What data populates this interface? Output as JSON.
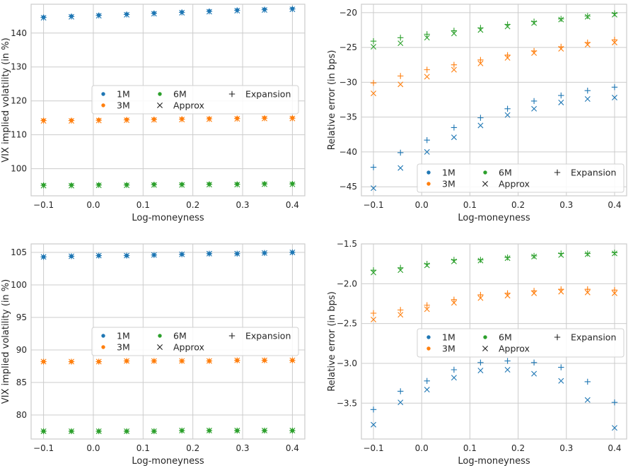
{
  "colors": {
    "1M": "#1f77b4",
    "3M": "#ff7f0e",
    "6M": "#2ca02c",
    "grid": "#cccccc",
    "frame": "#cccccc",
    "background": "#ffffff"
  },
  "chart_data": [
    {
      "type": "scatter",
      "xlabel": "Log-moneyness",
      "ylabel": "VIX implied volatility (in %)",
      "xlim": [
        -0.125,
        0.425
      ],
      "ylim": [
        92.0,
        148.5
      ],
      "xticks": [
        -0.1,
        0.0,
        0.1,
        0.2,
        0.3,
        0.4
      ],
      "xtick_labels": [
        "−0.1",
        "0.0",
        "0.1",
        "0.2",
        "0.3",
        "0.4"
      ],
      "yticks": [
        100,
        110,
        120,
        130,
        140
      ],
      "ytick_labels": [
        "100",
        "110",
        "120",
        "130",
        "140"
      ],
      "grid": true,
      "legend": {
        "placement": "center-right",
        "columns": 3,
        "entries": [
          "1M",
          "3M",
          "6M",
          "Approx",
          "Expansion"
        ]
      },
      "x": [
        -0.1,
        -0.044,
        0.011,
        0.067,
        0.122,
        0.178,
        0.233,
        0.289,
        0.344,
        0.4
      ],
      "series": [
        {
          "name": "1M",
          "marker": "dot",
          "values": [
            144.7,
            145.0,
            145.3,
            145.6,
            145.9,
            146.2,
            146.5,
            146.8,
            147.0,
            147.2
          ]
        },
        {
          "name": "3M",
          "marker": "dot",
          "values": [
            114.3,
            114.3,
            114.4,
            114.5,
            114.6,
            114.7,
            114.8,
            114.9,
            115.0,
            115.0
          ]
        },
        {
          "name": "6M",
          "marker": "dot",
          "values": [
            95.2,
            95.2,
            95.3,
            95.3,
            95.4,
            95.4,
            95.5,
            95.5,
            95.6,
            95.6
          ]
        },
        {
          "name": "Approx",
          "marker": "x",
          "group": "1M",
          "values": [
            144.5,
            144.8,
            145.1,
            145.4,
            145.7,
            146.0,
            146.3,
            146.6,
            146.8,
            147.0
          ]
        },
        {
          "name": "Approx",
          "marker": "x",
          "group": "3M",
          "values": [
            114.1,
            114.1,
            114.2,
            114.3,
            114.4,
            114.5,
            114.6,
            114.7,
            114.8,
            114.8
          ]
        },
        {
          "name": "Approx",
          "marker": "x",
          "group": "6M",
          "values": [
            95.0,
            95.0,
            95.1,
            95.1,
            95.2,
            95.2,
            95.3,
            95.3,
            95.4,
            95.4
          ]
        },
        {
          "name": "Expansion",
          "marker": "+",
          "group": "1M",
          "values": [
            144.6,
            144.9,
            145.2,
            145.5,
            145.8,
            146.1,
            146.4,
            146.7,
            146.9,
            147.1
          ]
        },
        {
          "name": "Expansion",
          "marker": "+",
          "group": "3M",
          "values": [
            114.2,
            114.2,
            114.3,
            114.4,
            114.5,
            114.6,
            114.7,
            114.8,
            114.9,
            114.9
          ]
        },
        {
          "name": "Expansion",
          "marker": "+",
          "group": "6M",
          "values": [
            95.1,
            95.1,
            95.2,
            95.2,
            95.3,
            95.3,
            95.4,
            95.4,
            95.5,
            95.5
          ]
        }
      ]
    },
    {
      "type": "scatter",
      "xlabel": "Log-moneyness",
      "ylabel": "Relative error (in bps)",
      "xlim": [
        -0.125,
        0.425
      ],
      "ylim": [
        -46.3,
        -18.8
      ],
      "xticks": [
        -0.1,
        0.0,
        0.1,
        0.2,
        0.3,
        0.4
      ],
      "xtick_labels": [
        "−0.1",
        "0.0",
        "0.1",
        "0.2",
        "0.3",
        "0.4"
      ],
      "yticks": [
        -45,
        -40,
        -35,
        -30,
        -25,
        -20
      ],
      "ytick_labels": [
        "−45",
        "−40",
        "−35",
        "−30",
        "−25",
        "−20"
      ],
      "grid": true,
      "legend": {
        "placement": "lower-right",
        "columns": 3,
        "entries": [
          "1M",
          "3M",
          "6M",
          "Approx",
          "Expansion"
        ]
      },
      "x": [
        -0.1,
        -0.044,
        0.011,
        0.067,
        0.122,
        0.178,
        0.233,
        0.289,
        0.344,
        0.4
      ],
      "series": [
        {
          "name": "Approx",
          "marker": "x",
          "group": "1M",
          "values": [
            -45.2,
            -42.3,
            -40.0,
            -37.9,
            -36.2,
            -34.7,
            -33.8,
            -32.9,
            -32.4,
            -32.2
          ]
        },
        {
          "name": "Expansion",
          "marker": "+",
          "group": "1M",
          "values": [
            -42.2,
            -40.1,
            -38.3,
            -36.5,
            -35.1,
            -33.8,
            -32.7,
            -31.9,
            -31.2,
            -30.7
          ]
        },
        {
          "name": "Approx",
          "marker": "x",
          "group": "3M",
          "values": [
            -31.6,
            -30.3,
            -29.2,
            -28.2,
            -27.3,
            -26.5,
            -25.8,
            -25.2,
            -24.6,
            -24.3
          ]
        },
        {
          "name": "Expansion",
          "marker": "+",
          "group": "3M",
          "values": [
            -30.1,
            -29.1,
            -28.2,
            -27.5,
            -26.8,
            -26.1,
            -25.5,
            -24.9,
            -24.3,
            -23.9
          ]
        },
        {
          "name": "Approx",
          "marker": "x",
          "group": "6M",
          "values": [
            -24.9,
            -24.4,
            -23.6,
            -23.0,
            -22.5,
            -22.0,
            -21.5,
            -21.0,
            -20.6,
            -20.3
          ]
        },
        {
          "name": "Expansion",
          "marker": "+",
          "group": "6M",
          "values": [
            -24.1,
            -23.6,
            -23.1,
            -22.6,
            -22.2,
            -21.7,
            -21.3,
            -20.9,
            -20.5,
            -20.1
          ]
        }
      ]
    },
    {
      "type": "scatter",
      "xlabel": "Log-moneyness",
      "ylabel": "VIX implied volatility (in %)",
      "xlim": [
        -0.125,
        0.425
      ],
      "ylim": [
        76.3,
        106.3
      ],
      "xticks": [
        -0.1,
        0.0,
        0.1,
        0.2,
        0.3,
        0.4
      ],
      "xtick_labels": [
        "−0.1",
        "0.0",
        "0.1",
        "0.2",
        "0.3",
        "0.4"
      ],
      "yticks": [
        80,
        85,
        90,
        95,
        100,
        105
      ],
      "ytick_labels": [
        "80",
        "85",
        "90",
        "95",
        "100",
        "105"
      ],
      "grid": true,
      "legend": {
        "placement": "center-right",
        "columns": 3,
        "entries": [
          "1M",
          "3M",
          "6M",
          "Approx",
          "Expansion"
        ]
      },
      "x": [
        -0.1,
        -0.044,
        0.011,
        0.067,
        0.122,
        0.178,
        0.233,
        0.289,
        0.344,
        0.4
      ],
      "series": [
        {
          "name": "1M",
          "marker": "dot",
          "values": [
            104.3,
            104.4,
            104.5,
            104.5,
            104.6,
            104.7,
            104.8,
            104.8,
            104.9,
            105.0
          ]
        },
        {
          "name": "3M",
          "marker": "dot",
          "values": [
            88.2,
            88.2,
            88.2,
            88.3,
            88.3,
            88.3,
            88.3,
            88.4,
            88.4,
            88.4
          ]
        },
        {
          "name": "6M",
          "marker": "dot",
          "values": [
            77.5,
            77.5,
            77.5,
            77.5,
            77.5,
            77.6,
            77.6,
            77.6,
            77.6,
            77.6
          ]
        },
        {
          "name": "Approx",
          "marker": "x",
          "group": "1M",
          "values": [
            104.3,
            104.4,
            104.5,
            104.5,
            104.6,
            104.7,
            104.8,
            104.8,
            104.9,
            105.0
          ]
        },
        {
          "name": "Approx",
          "marker": "x",
          "group": "3M",
          "values": [
            88.2,
            88.2,
            88.2,
            88.3,
            88.3,
            88.3,
            88.3,
            88.4,
            88.4,
            88.4
          ]
        },
        {
          "name": "Approx",
          "marker": "x",
          "group": "6M",
          "values": [
            77.5,
            77.5,
            77.5,
            77.5,
            77.5,
            77.6,
            77.6,
            77.6,
            77.6,
            77.6
          ]
        },
        {
          "name": "Expansion",
          "marker": "+",
          "group": "1M",
          "values": [
            104.3,
            104.4,
            104.5,
            104.5,
            104.6,
            104.7,
            104.8,
            104.8,
            104.9,
            105.0
          ]
        },
        {
          "name": "Expansion",
          "marker": "+",
          "group": "3M",
          "values": [
            88.2,
            88.2,
            88.2,
            88.3,
            88.3,
            88.3,
            88.3,
            88.4,
            88.4,
            88.4
          ]
        },
        {
          "name": "Expansion",
          "marker": "+",
          "group": "6M",
          "values": [
            77.5,
            77.5,
            77.5,
            77.5,
            77.5,
            77.6,
            77.6,
            77.6,
            77.6,
            77.6
          ]
        }
      ]
    },
    {
      "type": "scatter",
      "xlabel": "Log-moneyness",
      "ylabel": "Relative error (in bps)",
      "xlim": [
        -0.125,
        0.425
      ],
      "ylim": [
        -3.95,
        -1.5
      ],
      "xticks": [
        -0.1,
        0.0,
        0.1,
        0.2,
        0.3,
        0.4
      ],
      "xtick_labels": [
        "−0.1",
        "0.0",
        "0.1",
        "0.2",
        "0.3",
        "0.4"
      ],
      "yticks": [
        -3.5,
        -3.0,
        -2.5,
        -2.0,
        -1.5
      ],
      "ytick_labels": [
        "−3.5",
        "−3.0",
        "−2.5",
        "−2.0",
        "−1.5"
      ],
      "grid": true,
      "legend": {
        "placement": "center-right",
        "columns": 3,
        "entries": [
          "1M",
          "3M",
          "6M",
          "Approx",
          "Expansion"
        ]
      },
      "x": [
        -0.1,
        -0.044,
        0.011,
        0.067,
        0.122,
        0.178,
        0.233,
        0.289,
        0.344,
        0.4
      ],
      "series": [
        {
          "name": "Approx",
          "marker": "x",
          "group": "1M",
          "values": [
            -3.77,
            -3.49,
            -3.33,
            -3.18,
            -3.09,
            -3.08,
            -3.13,
            -3.22,
            -3.46,
            -3.81
          ]
        },
        {
          "name": "Expansion",
          "marker": "+",
          "group": "1M",
          "values": [
            -3.58,
            -3.35,
            -3.22,
            -3.08,
            -2.99,
            -2.97,
            -2.99,
            -3.05,
            -3.23,
            -3.49
          ]
        },
        {
          "name": "Approx",
          "marker": "x",
          "group": "3M",
          "values": [
            -2.45,
            -2.39,
            -2.32,
            -2.24,
            -2.18,
            -2.15,
            -2.12,
            -2.1,
            -2.11,
            -2.12
          ]
        },
        {
          "name": "Expansion",
          "marker": "+",
          "group": "3M",
          "values": [
            -2.37,
            -2.33,
            -2.27,
            -2.2,
            -2.14,
            -2.12,
            -2.09,
            -2.07,
            -2.07,
            -2.08
          ]
        },
        {
          "name": "Approx",
          "marker": "x",
          "group": "6M",
          "values": [
            -1.86,
            -1.83,
            -1.77,
            -1.72,
            -1.71,
            -1.68,
            -1.66,
            -1.64,
            -1.63,
            -1.62
          ]
        },
        {
          "name": "Expansion",
          "marker": "+",
          "group": "6M",
          "values": [
            -1.83,
            -1.8,
            -1.75,
            -1.7,
            -1.7,
            -1.67,
            -1.65,
            -1.62,
            -1.62,
            -1.61
          ]
        }
      ]
    }
  ]
}
